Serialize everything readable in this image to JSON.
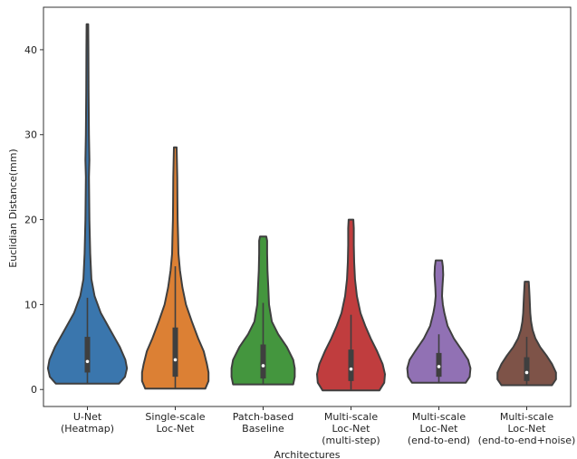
{
  "chart_data": {
    "type": "violin",
    "xlabel": "Architectures",
    "ylabel": "Euclidian Distance(mm)",
    "ylim": [
      -2,
      45
    ],
    "yticks": [
      0,
      10,
      20,
      30,
      40
    ],
    "grid": false,
    "categories": [
      {
        "lines": [
          "U-Net",
          "(Heatmap)"
        ]
      },
      {
        "lines": [
          "Single-scale",
          "Loc-Net"
        ]
      },
      {
        "lines": [
          "Patch-based",
          "Baseline"
        ]
      },
      {
        "lines": [
          "Multi-scale",
          "Loc-Net",
          "(multi-step)"
        ]
      },
      {
        "lines": [
          "Multi-scale",
          "Loc-Net",
          "(end-to-end)"
        ]
      },
      {
        "lines": [
          "Multi-scale",
          "Loc-Net",
          "(end-to-end+noise)"
        ]
      }
    ],
    "violins": [
      {
        "color": "#3a76ad",
        "min": 0.7,
        "max": 43,
        "q1": 2.0,
        "median": 3.3,
        "q3": 6.2,
        "whisker_low": 0.7,
        "whisker_high": 10.8,
        "profile": [
          [
            0.7,
            0.8
          ],
          [
            1.5,
            0.95
          ],
          [
            2.5,
            1.0
          ],
          [
            3.5,
            0.96
          ],
          [
            5,
            0.82
          ],
          [
            7,
            0.58
          ],
          [
            9,
            0.34
          ],
          [
            11,
            0.18
          ],
          [
            13,
            0.1
          ],
          [
            16,
            0.07
          ],
          [
            20,
            0.05
          ],
          [
            25,
            0.04
          ],
          [
            27,
            0.05
          ],
          [
            30,
            0.04
          ],
          [
            35,
            0.03
          ],
          [
            40,
            0.025
          ],
          [
            43,
            0.02
          ]
        ]
      },
      {
        "color": "#dc8034",
        "min": 0.1,
        "max": 28.5,
        "q1": 1.5,
        "median": 3.5,
        "q3": 7.3,
        "whisker_low": 0.1,
        "whisker_high": 14.5,
        "profile": [
          [
            0.1,
            0.76
          ],
          [
            1,
            0.84
          ],
          [
            2,
            0.84
          ],
          [
            3,
            0.8
          ],
          [
            4.5,
            0.72
          ],
          [
            6,
            0.58
          ],
          [
            8,
            0.42
          ],
          [
            10,
            0.27
          ],
          [
            12,
            0.18
          ],
          [
            14,
            0.12
          ],
          [
            16,
            0.08
          ],
          [
            18,
            0.07
          ],
          [
            20,
            0.06
          ],
          [
            22,
            0.055
          ],
          [
            25,
            0.05
          ],
          [
            28.5,
            0.035
          ]
        ]
      },
      {
        "color": "#44963e",
        "min": 0.6,
        "max": 18,
        "q1": 1.3,
        "median": 2.8,
        "q3": 5.3,
        "whisker_low": 0.6,
        "whisker_high": 10.2,
        "profile": [
          [
            0.6,
            0.76
          ],
          [
            1.5,
            0.8
          ],
          [
            2.5,
            0.8
          ],
          [
            3.5,
            0.76
          ],
          [
            5,
            0.6
          ],
          [
            6.5,
            0.38
          ],
          [
            8,
            0.22
          ],
          [
            10,
            0.15
          ],
          [
            12,
            0.13
          ],
          [
            14,
            0.11
          ],
          [
            16,
            0.1
          ],
          [
            17.5,
            0.1
          ],
          [
            18,
            0.08
          ]
        ]
      },
      {
        "color": "#c03d3e",
        "min": -0.1,
        "max": 20,
        "q1": 1.0,
        "median": 2.4,
        "q3": 4.7,
        "whisker_low": -0.1,
        "whisker_high": 8.8,
        "profile": [
          [
            -0.1,
            0.72
          ],
          [
            0.8,
            0.84
          ],
          [
            1.8,
            0.86
          ],
          [
            3,
            0.8
          ],
          [
            4.5,
            0.66
          ],
          [
            6,
            0.5
          ],
          [
            7.5,
            0.36
          ],
          [
            9,
            0.24
          ],
          [
            11,
            0.15
          ],
          [
            13,
            0.1
          ],
          [
            15,
            0.08
          ],
          [
            17,
            0.07
          ],
          [
            19,
            0.07
          ],
          [
            20,
            0.06
          ]
        ]
      },
      {
        "color": "#9171b4",
        "min": 0.8,
        "max": 15.2,
        "q1": 1.5,
        "median": 2.7,
        "q3": 4.3,
        "whisker_low": 0.8,
        "whisker_high": 6.5,
        "profile": [
          [
            0.8,
            0.68
          ],
          [
            1.5,
            0.78
          ],
          [
            2.5,
            0.8
          ],
          [
            3.5,
            0.74
          ],
          [
            4.5,
            0.6
          ],
          [
            6,
            0.38
          ],
          [
            7.5,
            0.22
          ],
          [
            9,
            0.14
          ],
          [
            10,
            0.1
          ],
          [
            11,
            0.08
          ],
          [
            12,
            0.09
          ],
          [
            13.5,
            0.11
          ],
          [
            14.5,
            0.1
          ],
          [
            15.2,
            0.08
          ]
        ]
      },
      {
        "color": "#7e5348",
        "min": 0.5,
        "max": 12.7,
        "q1": 1.0,
        "median": 2.0,
        "q3": 3.8,
        "whisker_low": 0.5,
        "whisker_high": 6.2,
        "profile": [
          [
            0.5,
            0.64
          ],
          [
            1.2,
            0.74
          ],
          [
            2,
            0.74
          ],
          [
            3,
            0.64
          ],
          [
            4,
            0.5
          ],
          [
            5,
            0.34
          ],
          [
            6,
            0.22
          ],
          [
            7,
            0.15
          ],
          [
            8,
            0.11
          ],
          [
            9,
            0.09
          ],
          [
            10,
            0.08
          ],
          [
            11,
            0.07
          ],
          [
            12,
            0.06
          ],
          [
            12.7,
            0.05
          ]
        ]
      }
    ]
  }
}
